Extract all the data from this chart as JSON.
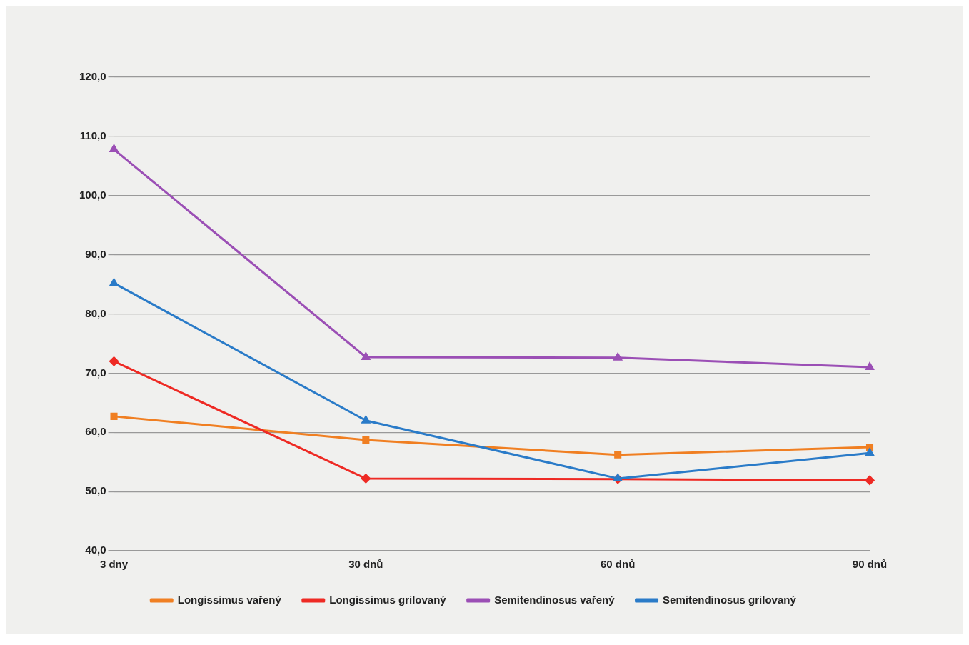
{
  "chart_data": {
    "type": "line",
    "categories": [
      "3 dny",
      "30 dnů",
      "60 dnů",
      "90 dnů"
    ],
    "series": [
      {
        "name": "Longissimus vařený",
        "color": "#f07f22",
        "marker": "square",
        "values": [
          62.7,
          58.7,
          56.2,
          57.5
        ]
      },
      {
        "name": "Longissimus grilovaný",
        "color": "#ee2a24",
        "marker": "diamond",
        "values": [
          72.0,
          52.2,
          52.1,
          51.9
        ]
      },
      {
        "name": "Semitendinosus vařený",
        "color": "#9b4fb5",
        "marker": "triangle",
        "values": [
          107.8,
          72.7,
          72.6,
          71.0
        ]
      },
      {
        "name": "Semitendinosus grilovaný",
        "color": "#2a7bc8",
        "marker": "triangle",
        "values": [
          85.2,
          62.0,
          52.2,
          56.5
        ]
      }
    ],
    "ylim": [
      40,
      120
    ],
    "yticks": [
      {
        "value": 40,
        "label": "40,0"
      },
      {
        "value": 50,
        "label": "50,0"
      },
      {
        "value": 60,
        "label": "60,0"
      },
      {
        "value": 70,
        "label": "70,0"
      },
      {
        "value": 80,
        "label": "80,0"
      },
      {
        "value": 90,
        "label": "90,0"
      },
      {
        "value": 100,
        "label": "100,0"
      },
      {
        "value": 110,
        "label": "110,0"
      },
      {
        "value": 120,
        "label": "120,0"
      }
    ],
    "grid": "y",
    "legend": "bottom",
    "line_style": "solid"
  }
}
